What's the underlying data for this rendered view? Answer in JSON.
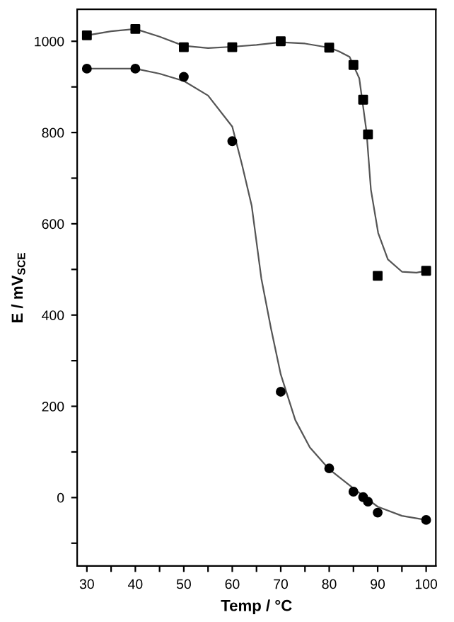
{
  "chart_data": {
    "type": "scatter",
    "xlabel": "Temp / °C",
    "ylabel": "E / mV$_{SCE}$",
    "xlim": [
      28,
      102
    ],
    "ylim": [
      -150,
      1070
    ],
    "xticks": [
      30,
      {
        "value": 35,
        "label": null
      },
      40,
      {
        "value": 45,
        "label": null
      },
      50,
      {
        "value": 55,
        "label": null
      },
      60,
      {
        "value": 65,
        "label": null
      },
      70,
      {
        "value": 75,
        "label": null
      },
      80,
      {
        "value": 85,
        "label": null
      },
      90,
      {
        "value": 95,
        "label": null
      },
      100
    ],
    "yticks": [
      {
        "value": -100,
        "label": null
      },
      0,
      {
        "value": 100,
        "label": null
      },
      200,
      {
        "value": 300,
        "label": null
      },
      400,
      {
        "value": 500,
        "label": null
      },
      600,
      {
        "value": 700,
        "label": null
      },
      800,
      {
        "value": 900,
        "label": null
      },
      1000
    ],
    "grid": false,
    "series": [
      {
        "marker": "square",
        "color": "#000000",
        "x": [
          30,
          40,
          50,
          60,
          70,
          80,
          85,
          87,
          88,
          90,
          100
        ],
        "values": [
          1013,
          1027,
          987,
          987,
          1000,
          986,
          948,
          872,
          796,
          486,
          497
        ]
      },
      {
        "marker": "circle",
        "color": "#000000",
        "x": [
          30,
          40,
          50,
          60,
          70,
          80,
          85,
          87,
          88,
          90,
          100
        ],
        "values": [
          940,
          940,
          922,
          781,
          232,
          64,
          13,
          1,
          -9,
          -33,
          -49
        ]
      },
      {
        "type": "line",
        "marker": "none",
        "color": "#555555",
        "x": [
          30,
          35,
          40,
          45,
          50,
          55,
          60,
          65,
          70,
          75,
          80,
          82,
          84.2,
          86.2,
          87.7,
          88.6,
          90.1,
          92.1,
          95,
          98,
          100
        ],
        "values": [
          1013,
          1022,
          1027,
          1010,
          990,
          985,
          988,
          992,
          998,
          995,
          986,
          978,
          966,
          919,
          802,
          675,
          580,
          522,
          495,
          493,
          497
        ]
      },
      {
        "type": "line",
        "marker": "none",
        "color": "#555555",
        "x": [
          30,
          40,
          45,
          50,
          55,
          60,
          62,
          64,
          66,
          68,
          70,
          73,
          76,
          80,
          85,
          90,
          95,
          100
        ],
        "values": [
          940,
          940,
          929,
          913,
          881,
          813,
          730,
          640,
          480,
          370,
          270,
          170,
          110,
          62,
          20,
          -20,
          -40,
          -49
        ]
      }
    ]
  }
}
